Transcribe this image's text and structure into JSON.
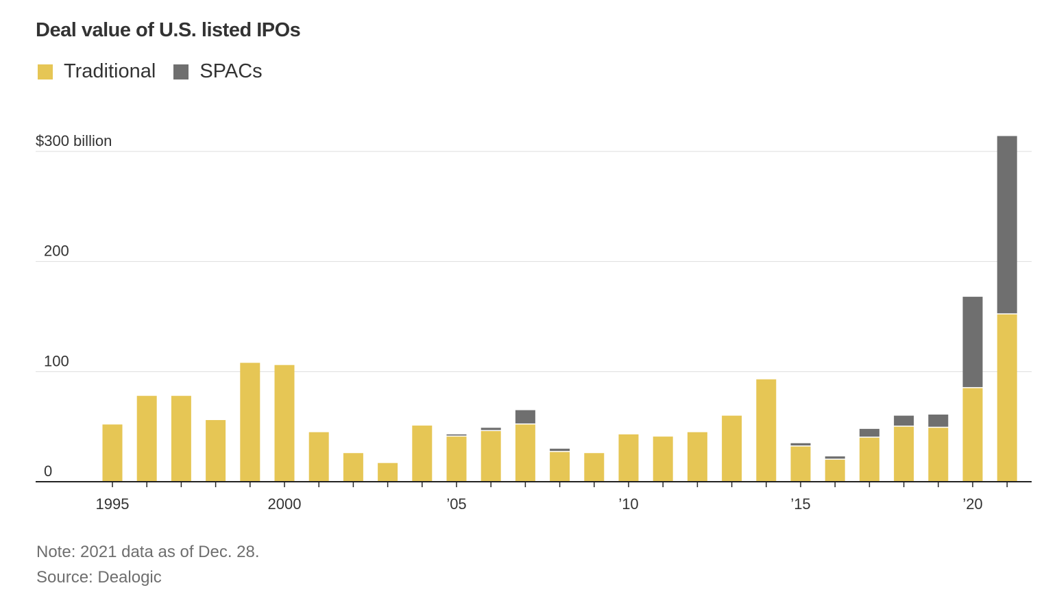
{
  "title": "Deal value of U.S. listed IPOs",
  "legend": [
    {
      "label": "Traditional",
      "color": "#e6c655"
    },
    {
      "label": "SPACs",
      "color": "#6f6f6f"
    }
  ],
  "footer": {
    "note": "Note: 2021 data as of Dec. 28.",
    "source": "Source: Dealogic"
  },
  "chart_data": {
    "type": "bar",
    "stacked": true,
    "x": [
      1995,
      1996,
      1997,
      1998,
      1999,
      2000,
      2001,
      2002,
      2003,
      2004,
      2005,
      2006,
      2007,
      2008,
      2009,
      2010,
      2011,
      2012,
      2013,
      2014,
      2015,
      2016,
      2017,
      2018,
      2019,
      2020,
      2021
    ],
    "series": [
      {
        "name": "Traditional",
        "color": "#e6c655",
        "values": [
          52,
          78,
          78,
          56,
          108,
          106,
          45,
          26,
          17,
          51,
          41,
          46,
          52,
          27,
          26,
          43,
          41,
          45,
          60,
          93,
          32,
          20,
          40,
          50,
          49,
          85,
          152
        ]
      },
      {
        "name": "SPACs",
        "color": "#6f6f6f",
        "values": [
          0,
          0,
          0,
          0,
          0,
          0,
          0,
          0,
          0,
          0,
          2,
          3,
          13,
          3,
          0,
          0,
          0,
          0,
          0,
          0,
          3,
          3,
          8,
          10,
          12,
          83,
          162
        ]
      }
    ],
    "yticks": [
      {
        "value": 0,
        "label": "0"
      },
      {
        "value": 100,
        "label": "100"
      },
      {
        "value": 200,
        "label": "200"
      },
      {
        "value": 300,
        "label": "$300 billion"
      }
    ],
    "xticks": [
      {
        "value": 1995,
        "label": "1995"
      },
      {
        "value": 2000,
        "label": "2000"
      },
      {
        "value": 2005,
        "label": "’05"
      },
      {
        "value": 2010,
        "label": "’10"
      },
      {
        "value": 2015,
        "label": "’15"
      },
      {
        "value": 2020,
        "label": "’20"
      }
    ],
    "ylim": [
      0,
      300
    ],
    "grid": true,
    "legend_position": "top-left"
  }
}
